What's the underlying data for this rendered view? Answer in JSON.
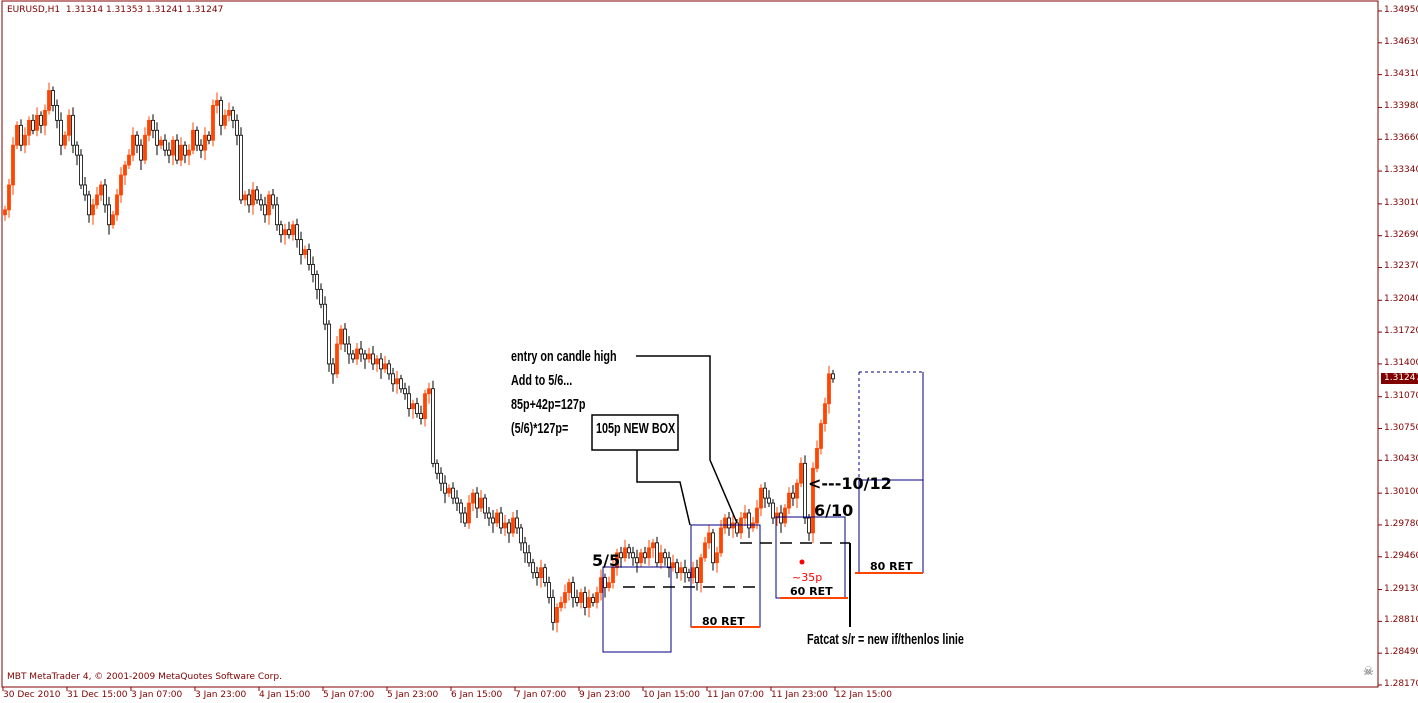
{
  "header": {
    "symbol": "EURUSD,H1",
    "ohlc": "1.31314 1.31353 1.31241 1.31247"
  },
  "footer": {
    "copyright": "MBT MetaTrader 4, © 2001-2009 MetaQuotes Software Corp."
  },
  "current_price": "1.31247",
  "colors": {
    "bull": "#ff4500",
    "bear_body": "#ffffff",
    "bear_outline": "#000000",
    "axis": "#800000",
    "boxes": "#000080",
    "ret_line": "#ff4500",
    "annotation_dot": "#ff0000"
  },
  "corner_icon": "skull-icon",
  "annotations": {
    "entry": "entry on candle high",
    "add": "Add to 5/6...",
    "sum": "85p+42p=127p",
    "calc": "(5/6)*127p=",
    "new_box": "105p NEW BOX",
    "five_five": "5/5",
    "six_ten": "6/10",
    "ten_twelve": "<---10/12",
    "thirtyfive": "~35p",
    "ret80a": "80 RET",
    "ret60": "60 RET",
    "ret80b": "80 RET",
    "fatcat": "Fatcat s/r = new if/thenlos linie"
  },
  "chart_data": {
    "type": "candlestick",
    "title": "EURUSD,H1",
    "timeframe": "H1",
    "ylim": [
      1.2817,
      1.3495
    ],
    "y_ticks": [
      "1.34950",
      "1.34630",
      "1.34310",
      "1.33980",
      "1.33660",
      "1.33340",
      "1.33010",
      "1.32690",
      "1.32370",
      "1.32040",
      "1.31720",
      "1.31400",
      "1.31070",
      "1.30750",
      "1.30430",
      "1.30100",
      "1.29780",
      "1.29460",
      "1.29130",
      "1.28810",
      "1.28490",
      "1.28170"
    ],
    "x_ticks": [
      "30 Dec 2010",
      "31 Dec 15:00",
      "3 Jan 07:00",
      "3 Jan 23:00",
      "4 Jan 15:00",
      "5 Jan 07:00",
      "5 Jan 23:00",
      "6 Jan 15:00",
      "7 Jan 07:00",
      "9 Jan 23:00",
      "10 Jan 15:00",
      "11 Jan 07:00",
      "11 Jan 23:00",
      "12 Jan 15:00"
    ],
    "first_open": 1.329,
    "closes": [
      1.3295,
      1.332,
      1.336,
      1.338,
      1.336,
      1.337,
      1.3385,
      1.3375,
      1.339,
      1.338,
      1.3395,
      1.3415,
      1.34,
      1.3385,
      1.336,
      1.337,
      1.339,
      1.336,
      1.335,
      1.332,
      1.331,
      1.329,
      1.33,
      1.331,
      1.332,
      1.33,
      1.328,
      1.329,
      1.331,
      1.333,
      1.334,
      1.335,
      1.337,
      1.336,
      1.3345,
      1.337,
      1.3385,
      1.3375,
      1.336,
      1.3365,
      1.3355,
      1.335,
      1.3365,
      1.3345,
      1.336,
      1.335,
      1.3355,
      1.3375,
      1.336,
      1.3355,
      1.337,
      1.3365,
      1.34,
      1.3405,
      1.338,
      1.339,
      1.3395,
      1.3385,
      1.337,
      1.3305,
      1.331,
      1.33,
      1.3315,
      1.3305,
      1.33,
      1.329,
      1.331,
      1.33,
      1.328,
      1.327,
      1.3275,
      1.327,
      1.328,
      1.3265,
      1.325,
      1.3255,
      1.324,
      1.323,
      1.3215,
      1.32,
      1.318,
      1.314,
      1.313,
      1.316,
      1.3175,
      1.316,
      1.315,
      1.3145,
      1.3155,
      1.315,
      1.3145,
      1.315,
      1.314,
      1.3145,
      1.3135,
      1.314,
      1.313,
      1.312,
      1.3125,
      1.3115,
      1.311,
      1.3095,
      1.31,
      1.309,
      1.3085,
      1.311,
      1.3115,
      1.304,
      1.303,
      1.302,
      1.301,
      1.3015,
      1.3005,
      1.3,
      1.299,
      1.298,
      1.3,
      1.301,
      1.2995,
      1.3005,
      1.299,
      1.2985,
      1.298,
      1.299,
      1.2975,
      1.298,
      1.297,
      1.2985,
      1.2975,
      1.296,
      1.295,
      1.294,
      1.293,
      1.2925,
      1.2935,
      1.292,
      1.2905,
      1.288,
      1.2895,
      1.29,
      1.291,
      1.292,
      1.2905,
      1.29,
      1.291,
      1.2895,
      1.2905,
      1.29,
      1.291,
      1.2925,
      1.2915,
      1.292,
      1.2935,
      1.295,
      1.2945,
      1.2955,
      1.295,
      1.2945,
      1.294,
      1.295,
      1.2945,
      1.2955,
      1.296,
      1.294,
      1.295,
      1.2945,
      1.2935,
      1.294,
      1.293,
      1.2935,
      1.293,
      1.2925,
      1.2935,
      1.292,
      1.2945,
      1.296,
      1.297,
      1.294,
      1.295,
      1.2975,
      1.2985,
      1.2975,
      1.298,
      1.297,
      1.2985,
      1.299,
      1.2975,
      1.298,
      1.2995,
      1.3015,
      1.3005,
      1.3,
      1.2985,
      1.299,
      1.298,
      1.2995,
      1.301,
      1.3005,
      1.302,
      1.304,
      1.2985,
      1.297,
      1.3035,
      1.3055,
      1.308,
      1.31,
      1.313,
      1.3125
    ],
    "grid": false
  }
}
